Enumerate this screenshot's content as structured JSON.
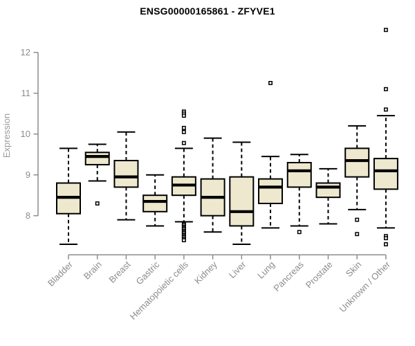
{
  "title": "ENSG00000165861 - ZFYVE1",
  "colors": {
    "background": "#ffffff",
    "box_fill": "#ede8ce",
    "box_stroke": "#000000",
    "median_stroke": "#000000",
    "whisker_stroke": "#000000",
    "outlier_stroke": "#000000",
    "outlier_fill": "#ffffff",
    "axis": "#8c8c8c",
    "tick_label": "#8c8c8c",
    "title": "#000000"
  },
  "chart_data": {
    "type": "boxplot",
    "title": "ENSG00000165861 - ZFYVE1",
    "xlabel": "",
    "ylabel": "Expression",
    "ylim": [
      7.2,
      12.7
    ],
    "yticks": [
      8,
      9,
      10,
      11,
      12
    ],
    "grid": false,
    "legend": "none",
    "categories": [
      "Bladder",
      "Brain",
      "Breast",
      "Gastric",
      "Hematopoietic cells",
      "Kidney",
      "Liver",
      "Lung",
      "Pancreas",
      "Prostate",
      "Skin",
      "Unknown / Other"
    ],
    "boxes": [
      {
        "category": "Bladder",
        "whisker_low": 7.3,
        "q1": 8.05,
        "median": 8.45,
        "q3": 8.8,
        "whisker_high": 9.65,
        "outliers": []
      },
      {
        "category": "Brain",
        "whisker_low": 8.85,
        "q1": 9.25,
        "median": 9.45,
        "q3": 9.55,
        "whisker_high": 9.75,
        "outliers": [
          8.3
        ]
      },
      {
        "category": "Breast",
        "whisker_low": 7.9,
        "q1": 8.7,
        "median": 8.95,
        "q3": 9.35,
        "whisker_high": 10.05,
        "outliers": []
      },
      {
        "category": "Gastric",
        "whisker_low": 7.75,
        "q1": 8.1,
        "median": 8.35,
        "q3": 8.5,
        "whisker_high": 9.0,
        "outliers": []
      },
      {
        "category": "Hematopoietic cells",
        "whisker_low": 7.85,
        "q1": 8.5,
        "median": 8.75,
        "q3": 8.95,
        "whisker_high": 9.65,
        "outliers": [
          10.55,
          10.5,
          10.45,
          10.15,
          10.05,
          9.78,
          7.8,
          7.77,
          7.73,
          7.7,
          7.67,
          7.63,
          7.6,
          7.57,
          7.53,
          7.5,
          7.47,
          7.43,
          7.4
        ]
      },
      {
        "category": "Kidney",
        "whisker_low": 7.6,
        "q1": 8.0,
        "median": 8.45,
        "q3": 8.9,
        "whisker_high": 9.9,
        "outliers": []
      },
      {
        "category": "Liver",
        "whisker_low": 7.3,
        "q1": 7.75,
        "median": 8.1,
        "q3": 8.95,
        "whisker_high": 9.8,
        "outliers": []
      },
      {
        "category": "Lung",
        "whisker_low": 7.7,
        "q1": 8.3,
        "median": 8.7,
        "q3": 8.9,
        "whisker_high": 9.45,
        "outliers": [
          11.25
        ]
      },
      {
        "category": "Pancreas",
        "whisker_low": 7.75,
        "q1": 8.7,
        "median": 9.1,
        "q3": 9.3,
        "whisker_high": 9.5,
        "outliers": [
          7.6
        ]
      },
      {
        "category": "Prostate",
        "whisker_low": 7.8,
        "q1": 8.45,
        "median": 8.7,
        "q3": 8.8,
        "whisker_high": 9.15,
        "outliers": []
      },
      {
        "category": "Skin",
        "whisker_low": 8.15,
        "q1": 8.95,
        "median": 9.35,
        "q3": 9.65,
        "whisker_high": 10.2,
        "outliers": [
          7.9,
          7.55
        ]
      },
      {
        "category": "Unknown / Other",
        "whisker_low": 7.7,
        "q1": 8.65,
        "median": 9.1,
        "q3": 9.4,
        "whisker_high": 10.45,
        "outliers": [
          12.55,
          11.1,
          10.6,
          7.5,
          7.45,
          7.3
        ]
      }
    ]
  }
}
